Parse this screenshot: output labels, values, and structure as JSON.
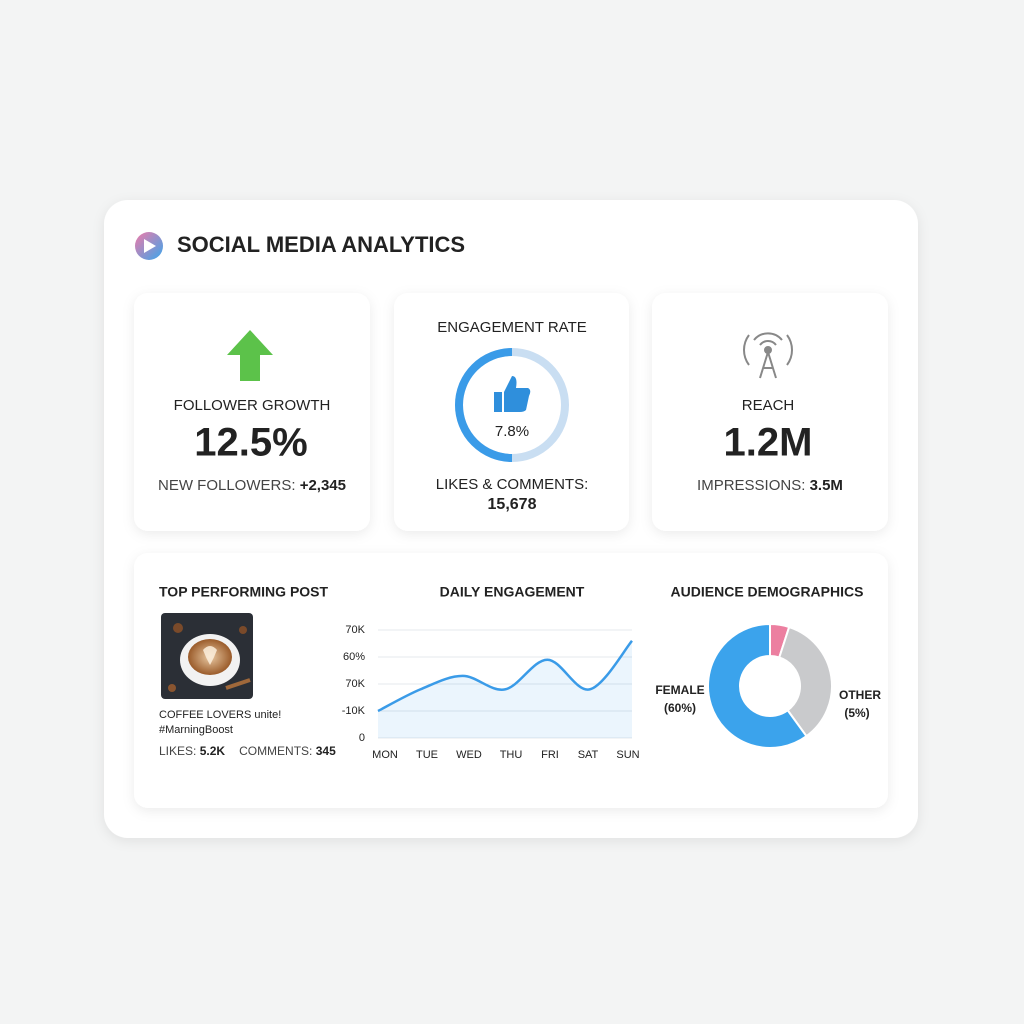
{
  "header": {
    "title": "SOCIAL MEDIA ANALYTICS"
  },
  "metrics": [
    {
      "title": "FOLLOWER GROWTH",
      "value": "12.5%",
      "sub_label": "NEW FOLLOWERS:",
      "sub_value": "+2,345"
    },
    {
      "title": "ENGAGEMENT RATE",
      "value": "7.8%",
      "sub_label": "LIKES & COMMENTS:",
      "sub_value": "15,678"
    },
    {
      "title": "REACH",
      "value": "1.2M",
      "sub_label": "IMPRESSIONS:",
      "sub_value": "3.5M"
    }
  ],
  "top_post": {
    "title": "TOP PERFORMING POST",
    "caption": "COFFEE LOVERS unite!",
    "hashtag": "#MarningBoost",
    "likes_label": "LIKES:",
    "likes": "5.2K",
    "comments_label": "COMMENTS:",
    "comments": "345"
  },
  "chart_data": [
    {
      "type": "line",
      "title": "DAILY ENGAGEMENT",
      "categories": [
        "MON",
        "TUE",
        "WED",
        "THU",
        "FRI",
        "SAT",
        "SUN"
      ],
      "series": [
        {
          "name": null,
          "color": "#3a9be8",
          "values": [
            1.0,
            1.8,
            2.3,
            1.8,
            2.9,
            1.8,
            3.6
          ]
        }
      ],
      "ylim": [
        0,
        4
      ],
      "yticks": [
        {
          "value": 4,
          "label": "70K"
        },
        {
          "value": 3,
          "label": "60%"
        },
        {
          "value": 2,
          "label": "70K"
        },
        {
          "value": 1,
          "label": "-10K"
        },
        0
      ],
      "grid": true
    },
    {
      "type": "pie",
      "title": "AUDIENCE DEMOGRAPHICS",
      "categories": [
        "OTHER",
        null,
        "FEMALE"
      ],
      "values": [
        5,
        35,
        60
      ],
      "value_labels": [
        "(5%)",
        null,
        "(60%)"
      ],
      "colors": [
        "#ec7fa0",
        "#c9cacc",
        "#3ba3ec"
      ]
    }
  ]
}
